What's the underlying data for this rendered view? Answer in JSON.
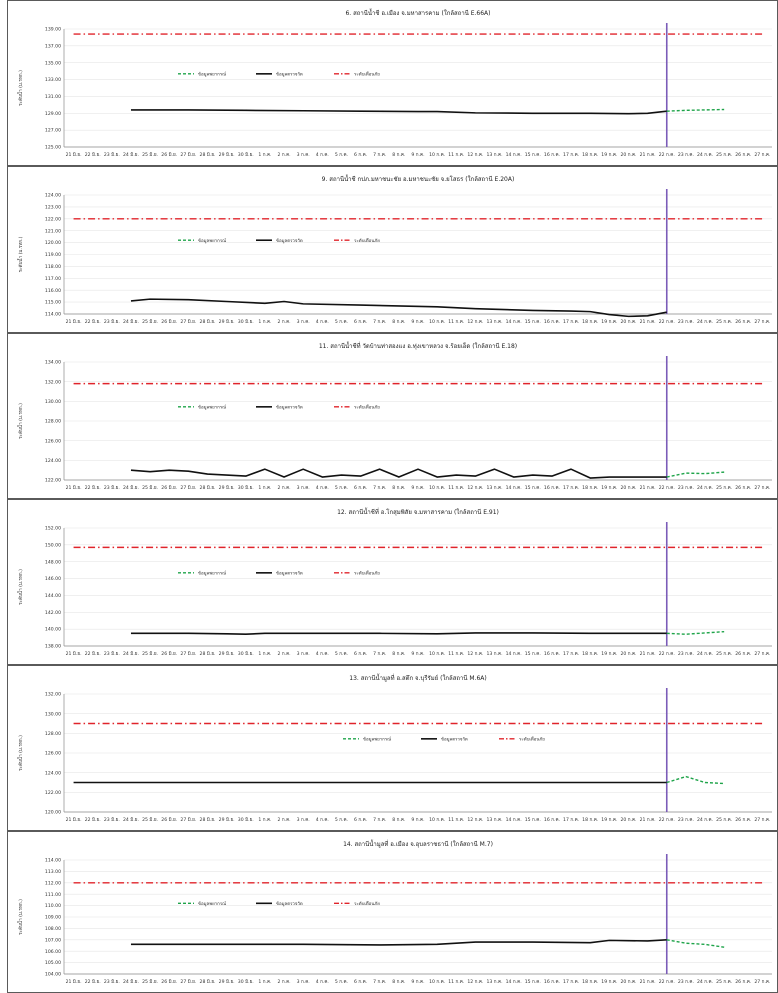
{
  "colors": {
    "forecast": "#1fa44a",
    "observed": "#111111",
    "alert": "#e0242b",
    "cutoff": "#7b5cb8",
    "grid": "#e6e6e6",
    "axis": "#8c8c8c"
  },
  "legend": {
    "forecast": "ข้อมูลพยากรณ์",
    "observed": "ข้อมูลตรวจวัด",
    "alert": "ระดับเตือนภัย"
  },
  "ylabel": "ระดับน้ำ (ม.รทก.)",
  "x_labels": [
    "21 มิ.ย.",
    "22 มิ.ย.",
    "23 มิ.ย.",
    "24 มิ.ย.",
    "25 มิ.ย.",
    "26 มิ.ย.",
    "27 มิ.ย.",
    "28 มิ.ย.",
    "29 มิ.ย.",
    "30 มิ.ย.",
    "1 ก.ค.",
    "2 ก.ค.",
    "3 ก.ค.",
    "4 ก.ค.",
    "5 ก.ค.",
    "6 ก.ค.",
    "7 ก.ค.",
    "8 ก.ค.",
    "9 ก.ค.",
    "10 ก.ค.",
    "11 ก.ค.",
    "12 ก.ค.",
    "13 ก.ค.",
    "14 ก.ค.",
    "15 ก.ค.",
    "16 ก.ค.",
    "17 ก.ค.",
    "18 ก.ค.",
    "19 ก.ค.",
    "20 ก.ค.",
    "21 ก.ค.",
    "22 ก.ค.",
    "23 ก.ค.",
    "24 ก.ค.",
    "25 ก.ค.",
    "26 ก.ค.",
    "27 ก.ค."
  ],
  "chart_data": [
    {
      "type": "line",
      "title": "6. สถานีน้ำชี อ.เมือง จ.มหาสารคาม (ใกล้สถานี E.66A)",
      "ylim": [
        125,
        139
      ],
      "yticks": [
        "125.00",
        "127.00",
        "129.00",
        "131.00",
        "133.00",
        "135.00",
        "137.00",
        "139.00"
      ],
      "alert_level": 138.4,
      "cutoff_date": "22 ก.ค.",
      "legend_position": "upper-left",
      "observed": {
        "x": [
          "24 มิ.ย.",
          "27 มิ.ย.",
          "30 มิ.ย.",
          "3 ก.ค.",
          "6 ก.ค.",
          "9 ก.ค.",
          "10 ก.ค.",
          "12 ก.ค.",
          "15 ก.ค.",
          "18 ก.ค.",
          "20 ก.ค.",
          "21 ก.ค.",
          "22 ก.ค."
        ],
        "y": [
          129.4,
          129.4,
          129.35,
          129.3,
          129.25,
          129.2,
          129.2,
          129.05,
          129.0,
          129.0,
          128.95,
          129.0,
          129.25
        ]
      },
      "forecast": {
        "x": [
          "22 ก.ค.",
          "23 ก.ค.",
          "24 ก.ค.",
          "25 ก.ค."
        ],
        "y": [
          129.25,
          129.35,
          129.4,
          129.45
        ]
      }
    },
    {
      "type": "line",
      "title": "9. สถานีน้ำชี กปภ.มหาชนะชัย อ.มหาชนะชัย จ.ยโสธร (ใกล้สถานี E.20A)",
      "ylim": [
        114,
        124
      ],
      "yticks": [
        "114.00",
        "115.00",
        "116.00",
        "117.00",
        "118.00",
        "119.00",
        "120.00",
        "121.00",
        "122.00",
        "123.00",
        "124.00"
      ],
      "alert_level": 122.0,
      "cutoff_date": "22 ก.ค.",
      "legend_position": "upper-left",
      "observed": {
        "x": [
          "24 มิ.ย.",
          "25 มิ.ย.",
          "27 มิ.ย.",
          "29 มิ.ย.",
          "1 ก.ค.",
          "2 ก.ค.",
          "3 ก.ค.",
          "6 ก.ค.",
          "10 ก.ค.",
          "12 ก.ค.",
          "15 ก.ค.",
          "17 ก.ค.",
          "18 ก.ค.",
          "19 ก.ค.",
          "20 ก.ค.",
          "21 ก.ค.",
          "22 ก.ค."
        ],
        "y": [
          115.1,
          115.25,
          115.2,
          115.05,
          114.9,
          115.05,
          114.85,
          114.75,
          114.6,
          114.45,
          114.3,
          114.25,
          114.2,
          113.95,
          113.8,
          113.85,
          114.15
        ]
      },
      "forecast": {
        "x": [],
        "y": []
      }
    },
    {
      "type": "line",
      "title": "11. สถานีน้ำชีที่ วัดบ้านท่าสองแง อ.ทุ่งเขาหลวง จ.ร้อยเอ็ด (ใกล้สถานี E.18)",
      "ylim": [
        122,
        134
      ],
      "yticks": [
        "122.00",
        "124.00",
        "126.00",
        "128.00",
        "130.00",
        "132.00",
        "134.00"
      ],
      "alert_level": 131.8,
      "cutoff_date": "22 ก.ค.",
      "legend_position": "upper-left",
      "observed": {
        "x": [
          "24 มิ.ย.",
          "25 มิ.ย.",
          "26 มิ.ย.",
          "27 มิ.ย.",
          "28 มิ.ย.",
          "30 มิ.ย.",
          "1 ก.ค.",
          "2 ก.ค.",
          "3 ก.ค.",
          "4 ก.ค.",
          "5 ก.ค.",
          "6 ก.ค.",
          "7 ก.ค.",
          "8 ก.ค.",
          "9 ก.ค.",
          "10 ก.ค.",
          "11 ก.ค.",
          "12 ก.ค.",
          "13 ก.ค.",
          "14 ก.ค.",
          "15 ก.ค.",
          "16 ก.ค.",
          "17 ก.ค.",
          "18 ก.ค.",
          "19 ก.ค.",
          "22 ก.ค."
        ],
        "y": [
          123.0,
          122.85,
          123.0,
          122.9,
          122.6,
          122.4,
          123.1,
          122.3,
          123.1,
          122.3,
          122.5,
          122.4,
          123.1,
          122.3,
          123.1,
          122.3,
          122.5,
          122.4,
          123.1,
          122.3,
          122.5,
          122.4,
          123.1,
          122.2,
          122.3,
          122.3
        ]
      },
      "forecast": {
        "x": [
          "22 ก.ค.",
          "23 ก.ค.",
          "24 ก.ค.",
          "25 ก.ค."
        ],
        "y": [
          122.3,
          122.7,
          122.65,
          122.8
        ]
      }
    },
    {
      "type": "line",
      "title": "12. สถานีน้ำชีที่ อ.โกสุมพิสัย จ.มหาสารคาม (ใกล้สถานี E.91)",
      "ylim": [
        138,
        152
      ],
      "yticks": [
        "138.00",
        "140.00",
        "142.00",
        "144.00",
        "146.00",
        "148.00",
        "150.00",
        "152.00"
      ],
      "alert_level": 149.7,
      "cutoff_date": "22 ก.ค.",
      "legend_position": "upper-left",
      "observed": {
        "x": [
          "24 มิ.ย.",
          "27 มิ.ย.",
          "29 มิ.ย.",
          "30 มิ.ย.",
          "1 ก.ค.",
          "4 ก.ค.",
          "7 ก.ค.",
          "10 ก.ค.",
          "12 ก.ค.",
          "15 ก.ค.",
          "18 ก.ค.",
          "20 ก.ค.",
          "22 ก.ค."
        ],
        "y": [
          139.5,
          139.5,
          139.45,
          139.4,
          139.5,
          139.5,
          139.5,
          139.45,
          139.55,
          139.55,
          139.5,
          139.5,
          139.5
        ]
      },
      "forecast": {
        "x": [
          "22 ก.ค.",
          "23 ก.ค.",
          "24 ก.ค.",
          "25 ก.ค."
        ],
        "y": [
          139.5,
          139.4,
          139.55,
          139.7
        ]
      }
    },
    {
      "type": "line",
      "title": "13. สถานีน้ำมูลที่ อ.สตึก จ.บุรีรัมย์ (ใกล้สถานี M.6A)",
      "ylim": [
        120,
        132
      ],
      "yticks": [
        "120.00",
        "122.00",
        "124.00",
        "126.00",
        "128.00",
        "130.00",
        "132.00"
      ],
      "alert_level": 129.0,
      "cutoff_date": "22 ก.ค.",
      "legend_position": "upper-center",
      "observed": {
        "x": [
          "21 มิ.ย.",
          "22 ก.ค."
        ],
        "y": [
          123.0,
          123.0
        ]
      },
      "forecast": {
        "x": [
          "22 ก.ค.",
          "23 ก.ค.",
          "24 ก.ค.",
          "25 ก.ค."
        ],
        "y": [
          123.0,
          123.6,
          123.0,
          122.9
        ]
      }
    },
    {
      "type": "line",
      "title": "14. สถานีน้ำมูลที่ อ.เมือง จ.อุบลราชธานี (ใกล้สถานี M.7)",
      "ylim": [
        104,
        114
      ],
      "yticks": [
        "104.00",
        "105.00",
        "106.00",
        "107.00",
        "108.00",
        "109.00",
        "110.00",
        "111.00",
        "112.00",
        "113.00",
        "114.00"
      ],
      "alert_level": 112.0,
      "cutoff_date": "22 ก.ค.",
      "legend_position": "upper-left",
      "observed": {
        "x": [
          "24 มิ.ย.",
          "27 มิ.ย.",
          "30 มิ.ย.",
          "3 ก.ค.",
          "7 ก.ค.",
          "10 ก.ค.",
          "12 ก.ค.",
          "15 ก.ค.",
          "18 ก.ค.",
          "19 ก.ค.",
          "21 ก.ค.",
          "22 ก.ค."
        ],
        "y": [
          106.6,
          106.6,
          106.6,
          106.6,
          106.55,
          106.6,
          106.8,
          106.8,
          106.75,
          106.95,
          106.9,
          107.0
        ]
      },
      "forecast": {
        "x": [
          "22 ก.ค.",
          "23 ก.ค.",
          "24 ก.ค.",
          "25 ก.ค."
        ],
        "y": [
          107.0,
          106.7,
          106.6,
          106.35
        ]
      }
    }
  ]
}
